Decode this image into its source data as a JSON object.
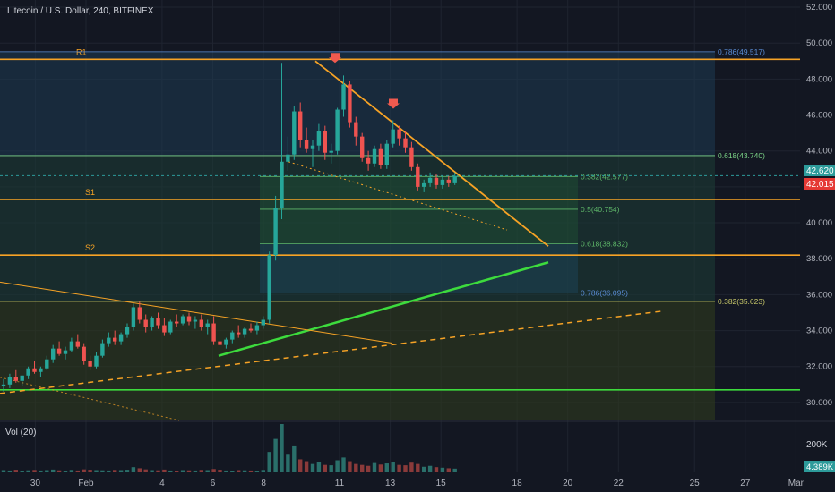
{
  "header": {
    "title": "Litecoin / U.S. Dollar, 240, BITFINEX"
  },
  "volume_pane": {
    "label": "Vol (20)",
    "axis_label": "200K",
    "last_badge": "4.389K"
  },
  "price_badges": {
    "last": "42.015",
    "dashed": "42.620"
  },
  "chart_data": {
    "type": "candlestick",
    "y_ticks": [
      "30.000",
      "32.000",
      "34.000",
      "36.000",
      "38.000",
      "40.000",
      "42.000",
      "44.000",
      "46.000",
      "48.000",
      "50.000",
      "52.000"
    ],
    "ylim": [
      29.0,
      52.4
    ],
    "x_ticks": [
      {
        "label": "30",
        "day": -2
      },
      {
        "label": "Feb",
        "day": 0
      },
      {
        "label": "4",
        "day": 3
      },
      {
        "label": "6",
        "day": 5
      },
      {
        "label": "8",
        "day": 7
      },
      {
        "label": "11",
        "day": 10
      },
      {
        "label": "13",
        "day": 12
      },
      {
        "label": "15",
        "day": 14
      },
      {
        "label": "18",
        "day": 17
      },
      {
        "label": "20",
        "day": 19
      },
      {
        "label": "22",
        "day": 21
      },
      {
        "label": "25",
        "day": 24
      },
      {
        "label": "27",
        "day": 26
      },
      {
        "label": "Mar",
        "day": 28
      }
    ],
    "horizontal_levels": [
      {
        "label": "R1",
        "value": 49.1,
        "color": "#f7a325"
      },
      {
        "label": "S1",
        "value": 41.3,
        "color": "#f7a325"
      },
      {
        "label": "S2",
        "value": 38.2,
        "color": "#f7a325"
      },
      {
        "label": "",
        "value": 30.7,
        "color": "#3ddb3d"
      }
    ],
    "fib_upper": [
      {
        "label": "0.786(49.517)",
        "value": 49.517,
        "color": "#5b8dd6"
      },
      {
        "label": "0.618(43.740)",
        "value": 43.74,
        "color": "#7fd98a"
      },
      {
        "label": "0.382(35.623)",
        "value": 35.623,
        "color": "#c9c96a"
      }
    ],
    "fib_lower": [
      {
        "label": "0.382(42.577)",
        "value": 42.577,
        "color": "#5fb86a"
      },
      {
        "label": "0.5(40.754)",
        "value": 40.754,
        "color": "#5fb86a"
      },
      {
        "label": "0.618(38.832)",
        "value": 38.832,
        "color": "#5fb86a"
      },
      {
        "label": "0.786(36.095)",
        "value": 36.095,
        "color": "#5b8dd6"
      }
    ],
    "candles": [
      [
        30.9,
        31.3,
        30.6,
        31.0
      ],
      [
        31.0,
        31.6,
        30.8,
        31.4
      ],
      [
        31.4,
        31.8,
        31.1,
        31.2
      ],
      [
        31.2,
        31.5,
        30.9,
        31.5
      ],
      [
        31.5,
        32.0,
        31.3,
        31.9
      ],
      [
        31.9,
        32.3,
        31.6,
        31.7
      ],
      [
        31.7,
        32.0,
        31.4,
        31.9
      ],
      [
        31.9,
        32.6,
        31.8,
        32.4
      ],
      [
        32.4,
        33.2,
        32.2,
        33.0
      ],
      [
        33.0,
        33.4,
        32.6,
        32.7
      ],
      [
        32.7,
        33.1,
        32.4,
        32.9
      ],
      [
        32.9,
        33.6,
        32.8,
        33.4
      ],
      [
        33.4,
        33.8,
        33.0,
        33.1
      ],
      [
        33.1,
        33.3,
        32.1,
        32.3
      ],
      [
        32.3,
        32.6,
        31.8,
        32.0
      ],
      [
        32.0,
        32.8,
        31.9,
        32.6
      ],
      [
        32.6,
        33.5,
        32.5,
        33.3
      ],
      [
        33.3,
        33.9,
        33.1,
        33.6
      ],
      [
        33.6,
        34.0,
        33.2,
        33.4
      ],
      [
        33.4,
        33.9,
        33.2,
        33.8
      ],
      [
        33.8,
        34.4,
        33.6,
        34.2
      ],
      [
        34.2,
        35.5,
        34.0,
        35.3
      ],
      [
        35.3,
        35.6,
        34.4,
        34.6
      ],
      [
        34.6,
        34.9,
        33.9,
        34.2
      ],
      [
        34.2,
        34.8,
        34.0,
        34.7
      ],
      [
        34.7,
        35.0,
        34.1,
        34.3
      ],
      [
        34.3,
        34.7,
        33.7,
        33.9
      ],
      [
        33.9,
        34.6,
        33.8,
        34.5
      ],
      [
        34.5,
        34.9,
        34.2,
        34.4
      ],
      [
        34.4,
        34.9,
        34.3,
        34.8
      ],
      [
        34.8,
        35.0,
        34.3,
        34.5
      ],
      [
        34.5,
        34.8,
        34.1,
        34.6
      ],
      [
        34.6,
        34.9,
        34.0,
        34.2
      ],
      [
        34.2,
        34.6,
        33.8,
        34.4
      ],
      [
        34.4,
        34.8,
        33.2,
        33.4
      ],
      [
        33.4,
        33.7,
        32.9,
        33.2
      ],
      [
        33.2,
        33.6,
        33.0,
        33.5
      ],
      [
        33.5,
        34.0,
        33.3,
        33.9
      ],
      [
        33.9,
        34.3,
        33.6,
        33.8
      ],
      [
        33.8,
        34.2,
        33.6,
        34.1
      ],
      [
        34.1,
        34.4,
        33.9,
        34.0
      ],
      [
        34.0,
        34.5,
        33.8,
        34.3
      ],
      [
        34.3,
        34.8,
        34.1,
        34.6
      ],
      [
        34.6,
        38.4,
        34.4,
        38.2
      ],
      [
        38.2,
        41.5,
        37.9,
        40.8
      ],
      [
        40.8,
        48.9,
        40.2,
        43.4
      ],
      [
        43.4,
        44.8,
        42.9,
        43.8
      ],
      [
        43.8,
        46.5,
        43.5,
        46.2
      ],
      [
        46.2,
        46.7,
        44.2,
        44.6
      ],
      [
        44.6,
        45.3,
        43.9,
        44.1
      ],
      [
        44.1,
        44.6,
        43.1,
        44.3
      ],
      [
        44.3,
        45.5,
        44.0,
        45.1
      ],
      [
        45.1,
        45.4,
        43.5,
        43.9
      ],
      [
        43.9,
        44.4,
        43.3,
        44.0
      ],
      [
        44.0,
        46.4,
        43.8,
        46.3
      ],
      [
        46.3,
        48.2,
        45.9,
        47.7
      ],
      [
        47.7,
        47.9,
        45.3,
        45.6
      ],
      [
        45.6,
        45.9,
        44.3,
        44.8
      ],
      [
        44.8,
        45.0,
        43.4,
        43.6
      ],
      [
        43.6,
        44.0,
        42.9,
        43.3
      ],
      [
        43.3,
        44.3,
        43.1,
        44.1
      ],
      [
        44.1,
        44.4,
        43.0,
        43.2
      ],
      [
        43.2,
        44.6,
        43.0,
        44.4
      ],
      [
        44.4,
        45.7,
        44.2,
        45.2
      ],
      [
        45.2,
        45.4,
        44.3,
        44.7
      ],
      [
        44.7,
        45.1,
        43.9,
        44.2
      ],
      [
        44.2,
        44.5,
        42.9,
        43.1
      ],
      [
        43.1,
        43.3,
        41.8,
        42.0
      ],
      [
        42.0,
        42.4,
        41.7,
        42.2
      ],
      [
        42.2,
        42.8,
        42.0,
        42.5
      ],
      [
        42.5,
        42.7,
        41.9,
        42.1
      ],
      [
        42.1,
        42.6,
        41.9,
        42.4
      ],
      [
        42.4,
        42.6,
        42.0,
        42.2
      ],
      [
        42.2,
        42.8,
        42.1,
        42.6
      ]
    ],
    "volume": [
      12,
      10,
      14,
      9,
      11,
      13,
      10,
      12,
      15,
      11,
      9,
      13,
      10,
      16,
      14,
      12,
      11,
      10,
      13,
      12,
      14,
      28,
      22,
      16,
      12,
      11,
      15,
      10,
      9,
      12,
      11,
      10,
      13,
      12,
      18,
      14,
      10,
      9,
      12,
      11,
      10,
      9,
      13,
      110,
      180,
      260,
      95,
      140,
      70,
      60,
      45,
      55,
      40,
      38,
      65,
      80,
      60,
      45,
      40,
      35,
      50,
      42,
      48,
      55,
      40,
      38,
      52,
      45,
      30,
      35,
      28,
      25,
      22,
      20
    ]
  }
}
